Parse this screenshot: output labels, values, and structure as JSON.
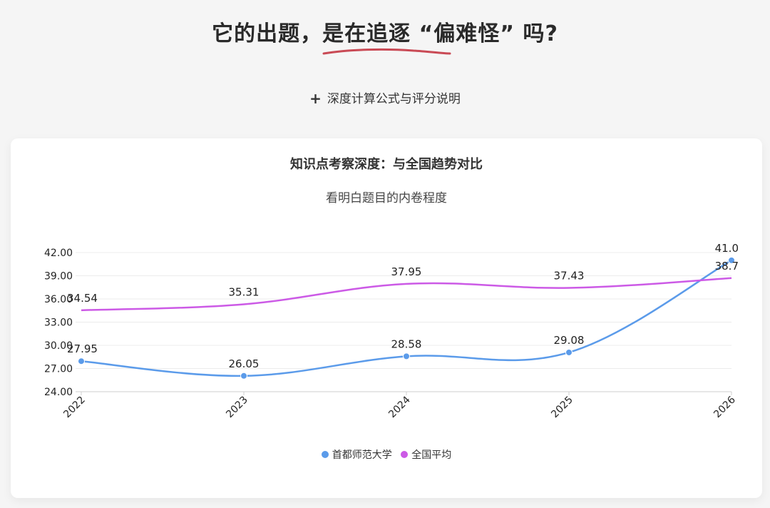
{
  "header": {
    "title": "它的出题，是在追逐 “偏难怪” 吗?",
    "toggle_label": "深度计算公式与评分说明",
    "accent_color": "#c94a55"
  },
  "chart_data": {
    "type": "line",
    "title": "知识点考察深度：与全国趋势对比",
    "subtitle": "看明白题目的内卷程度",
    "categories": [
      "2022",
      "2023",
      "2024",
      "2025",
      "2026"
    ],
    "series": [
      {
        "name": "首都师范大学",
        "values": [
          27.95,
          26.05,
          28.58,
          29.08,
          41.0
        ],
        "labels": [
          "27.95",
          "26.05",
          "28.58",
          "29.08",
          "41.0"
        ],
        "color": "#5b9bea",
        "markers": true
      },
      {
        "name": "全国平均",
        "values": [
          34.54,
          35.31,
          37.95,
          37.43,
          38.7
        ],
        "labels": [
          "34.54",
          "35.31",
          "37.95",
          "37.43",
          "38.7"
        ],
        "color": "#cc5ae6",
        "markers": false
      }
    ],
    "yticks": [
      "24.00",
      "27.00",
      "30.00",
      "33.00",
      "36.00",
      "39.00",
      "42.00"
    ],
    "ylim": [
      24,
      42
    ],
    "grid": true,
    "legend_position": "bottom"
  }
}
